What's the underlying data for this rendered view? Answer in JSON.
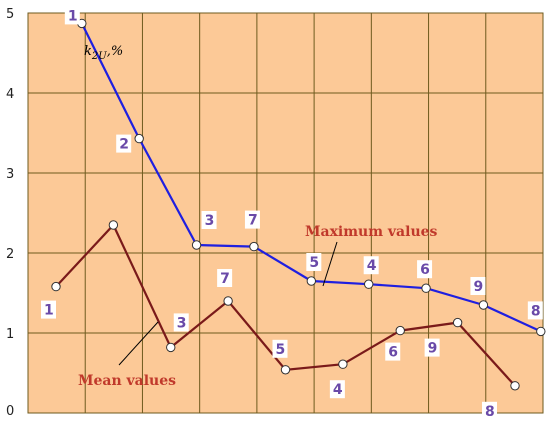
{
  "chart_data": {
    "type": "line",
    "ylabel": "k2U,%",
    "ylabel_parts": {
      "base": "k",
      "sub": "2U",
      "suffix": ",%"
    },
    "ylim": [
      0,
      5
    ],
    "yticks": [
      "0",
      "1",
      "2",
      "3",
      "4",
      "5"
    ],
    "xlim": [
      0,
      8
    ],
    "grid": true,
    "colors": {
      "background": "#fcc997",
      "grid": "#6e5a1e",
      "point_label": "#6a4aa8",
      "series_label": "#c0392b",
      "max_series": "#1f1fe0",
      "mean_series": "#7a1a1a"
    },
    "series": [
      {
        "name": "Maximum values",
        "color": "#1f1fe0",
        "x": [
          0.45,
          1.45,
          2.45,
          3.45,
          4.45,
          5.45,
          6.45,
          7.45,
          8.45
        ],
        "y": [
          4.87,
          3.43,
          2.1,
          2.08,
          1.65,
          1.61,
          1.56,
          1.35,
          1.02
        ],
        "labels": [
          "1",
          "2",
          "3",
          "7",
          "5",
          "4",
          "6",
          "9",
          "8"
        ]
      },
      {
        "name": "Mean values",
        "color": "#7a1a1a",
        "x": [
          0,
          1,
          2,
          3,
          4,
          5,
          6,
          7,
          8
        ],
        "y": [
          1.58,
          2.35,
          0.82,
          1.4,
          0.54,
          0.61,
          1.03,
          1.13,
          0.34
        ],
        "labels": [
          "1",
          "",
          "3",
          "7",
          "5",
          "4",
          "6",
          "9",
          "8"
        ]
      }
    ]
  }
}
